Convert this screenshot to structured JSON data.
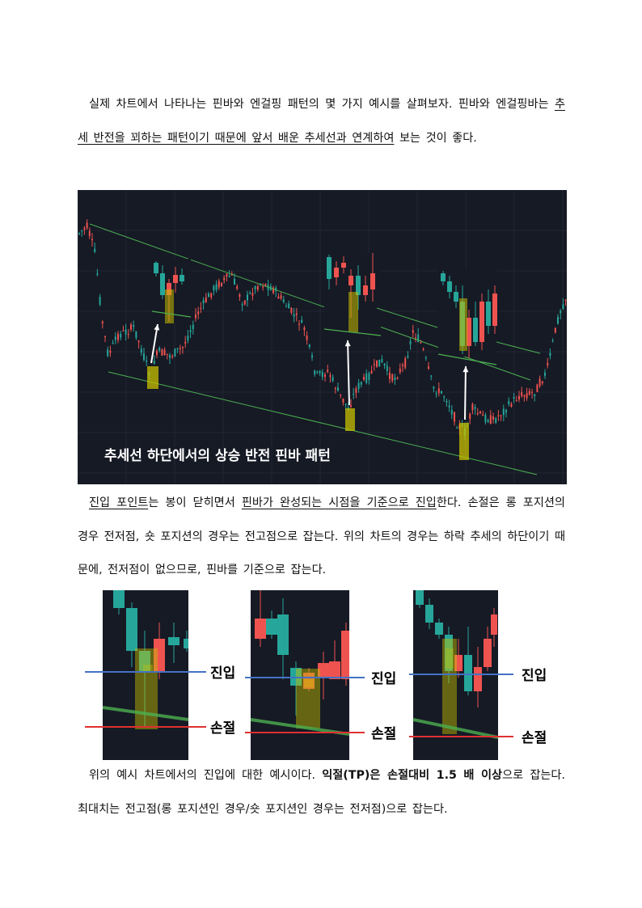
{
  "paragraph1": {
    "text_a": "실제 차트에서 나타나는 핀바와 엔걸핑 패턴의 몇 가지 예시를 살펴보자. 핀바와 엔걸핑바는 ",
    "text_b": "추세 반전을 꾀하는 패턴이기 때문에 앞서 배운 추세선과 연계하여",
    "text_c": " 보는 것이 좋다."
  },
  "main_chart": {
    "caption": "추세선 하단에서의 상승 반전 핀바 패턴",
    "colors": {
      "background": "#161a25",
      "bull": "#26a69a",
      "bear": "#ef5350",
      "trendline": "#4caf50",
      "highlight": "#c8c000"
    }
  },
  "paragraph2": {
    "text_a": "진입 포인트",
    "text_b": "는 봉이 닫히면서 ",
    "text_c": "핀바가 완성되는 시점을 기준으로 진입",
    "text_d": "한다. 손절은 롱 포지션의 경우 전저점, 숏 포지션의 경우는 전고점으로 잡는다. 위의 차트의 경우는 하락 추세의 하단이기 때문에, 전저점이 없으므로, 핀바를 기준으로 잡는다."
  },
  "entry_examples": [
    {
      "entry_label": "진입",
      "stop_label": "손절"
    },
    {
      "entry_label": "진입",
      "stop_label": "손절"
    },
    {
      "entry_label": "진입",
      "stop_label": "손절"
    }
  ],
  "line_colors": {
    "entry": "#4472c4",
    "stop": "#e03030"
  },
  "paragraph3": {
    "text_a": "위의 예시 차트에서의 진입에 대한 예시이다. ",
    "text_b": "익절(TP)은 손절대비 1.5 배 이상",
    "text_c": "으로 잡는다. 최대치는 전고점(롱 포지션인 경우/숏 포지션인 경우는 전저점)으로 잡는다."
  }
}
